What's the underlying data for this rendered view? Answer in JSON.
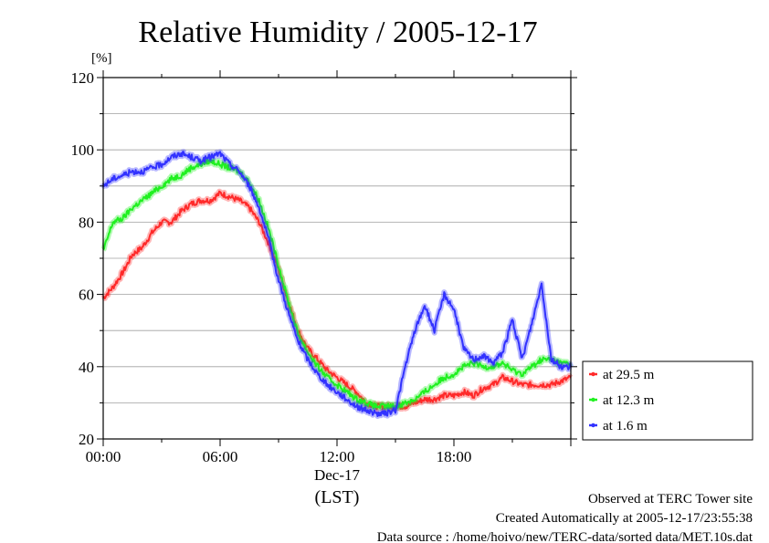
{
  "chart_data": {
    "type": "line",
    "title": "Relative Humidity / 2005-12-17",
    "ylabel_unit": "[%]",
    "xlabel": "(LST)",
    "x_date_label": "Dec-17",
    "ylim": [
      20,
      120
    ],
    "y_ticks": [
      "20",
      "40",
      "60",
      "80",
      "100",
      "120"
    ],
    "xlim_hours": [
      0,
      24
    ],
    "x_ticks": [
      {
        "h": 0,
        "label": "00:00"
      },
      {
        "h": 6,
        "label": "06:00"
      },
      {
        "h": 12,
        "label": "12:00"
      },
      {
        "h": 18,
        "label": "18:00"
      }
    ],
    "grid": true,
    "legend_position": "right",
    "series": [
      {
        "name": "at 29.5 m",
        "color": "#ff2a2a",
        "x": [
          0,
          0.5,
          1,
          1.5,
          2,
          2.5,
          3,
          3.5,
          4,
          4.5,
          5,
          5.5,
          6,
          6.5,
          7,
          7.5,
          8,
          8.5,
          9,
          9.5,
          10,
          10.5,
          11,
          11.5,
          12,
          12.5,
          13,
          13.5,
          14,
          14.5,
          15,
          15.5,
          16,
          16.5,
          17,
          17.5,
          18,
          18.5,
          19,
          19.5,
          20,
          20.5,
          21,
          21.5,
          22,
          22.5,
          23,
          23.5,
          24
        ],
        "values": [
          59,
          62,
          66,
          71,
          73,
          77,
          80,
          80,
          83,
          85,
          86,
          86,
          88,
          87,
          86,
          84,
          80,
          74,
          67,
          58,
          50,
          45,
          42,
          39,
          37,
          35,
          33,
          30,
          29,
          29,
          29,
          29,
          30,
          31,
          31,
          32,
          32,
          33,
          32,
          34,
          35,
          37,
          36,
          35,
          35,
          35,
          35,
          36,
          37
        ]
      },
      {
        "name": "at 12.3 m",
        "color": "#20f020",
        "x": [
          0,
          0.5,
          1,
          1.5,
          2,
          2.5,
          3,
          3.5,
          4,
          4.5,
          5,
          5.5,
          6,
          6.5,
          7,
          7.5,
          8,
          8.5,
          9,
          9.5,
          10,
          10.5,
          11,
          11.5,
          12,
          12.5,
          13,
          13.5,
          14,
          14.5,
          15,
          15.5,
          16,
          16.5,
          17,
          17.5,
          18,
          18.5,
          19,
          19.5,
          20,
          20.5,
          21,
          21.5,
          22,
          22.5,
          23,
          23.5,
          24
        ],
        "values": [
          72,
          80,
          81,
          84,
          86,
          88,
          90,
          92,
          93,
          95,
          96,
          97,
          96,
          95,
          94,
          91,
          86,
          78,
          68,
          58,
          49,
          44,
          40,
          37,
          35,
          33,
          31,
          30,
          29,
          29,
          29,
          30,
          31,
          33,
          35,
          37,
          38,
          40,
          41,
          40,
          40,
          41,
          39,
          38,
          40,
          42,
          42,
          41,
          41
        ]
      },
      {
        "name": "at 1.6 m",
        "color": "#3232ff",
        "x": [
          0,
          0.5,
          1,
          1.5,
          2,
          2.5,
          3,
          3.5,
          4,
          4.5,
          5,
          5.5,
          6,
          6.5,
          7,
          7.5,
          8,
          8.5,
          9,
          9.5,
          10,
          10.5,
          11,
          11.5,
          12,
          12.5,
          13,
          13.5,
          14,
          14.5,
          15,
          15.5,
          16,
          16.5,
          17,
          17.5,
          18,
          18.5,
          19,
          19.5,
          20,
          20.5,
          21,
          21.5,
          22,
          22.5,
          23,
          23.5,
          24
        ],
        "values": [
          90,
          92,
          93,
          94,
          94,
          95,
          96,
          98,
          99,
          98,
          97,
          98,
          99,
          96,
          94,
          90,
          84,
          75,
          64,
          55,
          47,
          42,
          38,
          35,
          33,
          31,
          29,
          28,
          27,
          27,
          28,
          40,
          50,
          57,
          50,
          60,
          56,
          45,
          42,
          43,
          41,
          44,
          53,
          42,
          52,
          63,
          42,
          40,
          40
        ]
      }
    ]
  },
  "footer": {
    "line1": "Observed at TERC Tower site",
    "line2": "Created Automatically at 2005-12-17/23:55:38",
    "line3": "Data source : /home/hoivo/new/TERC-data/sorted  data/MET.10s.dat"
  }
}
